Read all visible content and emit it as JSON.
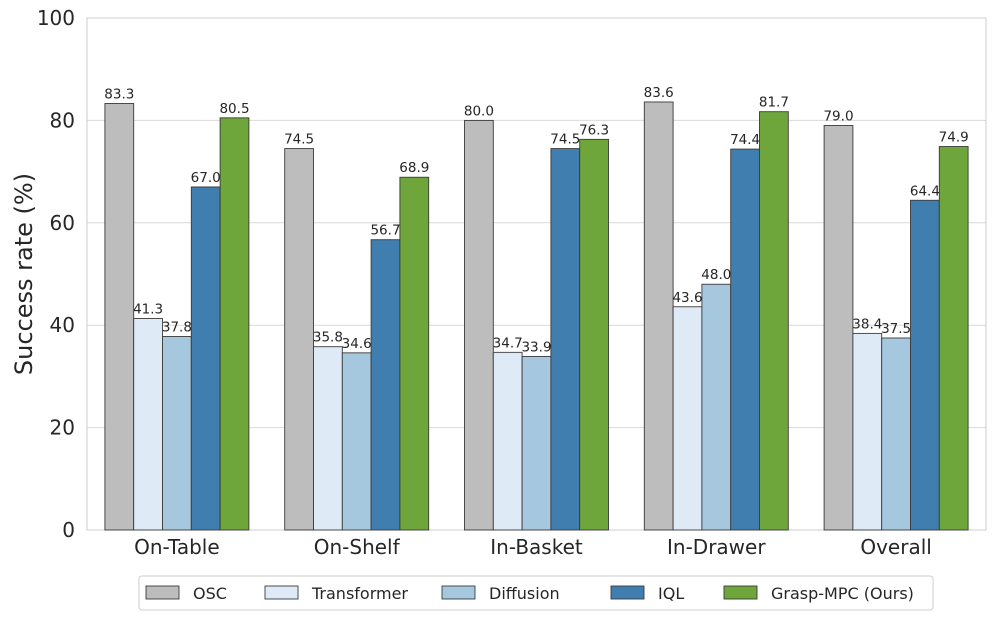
{
  "chart_data": {
    "type": "bar",
    "title": "",
    "xlabel": "",
    "ylabel": "Success rate (%)",
    "ylim": [
      0,
      100
    ],
    "yticks": [
      "0",
      "20",
      "40",
      "60",
      "80",
      "100"
    ],
    "grid": true,
    "legend_position": "bottom",
    "categories": [
      "On-Table",
      "On-Shelf",
      "In-Basket",
      "In-Drawer",
      "Overall"
    ],
    "series": [
      {
        "name": "OSC",
        "color": "#bdbdbd",
        "values": [
          83.3,
          74.5,
          80.0,
          83.6,
          79.0
        ]
      },
      {
        "name": "Transformer",
        "color": "#deebf7",
        "values": [
          41.3,
          35.8,
          34.7,
          43.6,
          38.4
        ]
      },
      {
        "name": "Diffusion",
        "color": "#a6c8de",
        "values": [
          37.8,
          34.6,
          33.9,
          48.0,
          37.5
        ]
      },
      {
        "name": "IQL",
        "color": "#3f7eae",
        "values": [
          67.0,
          56.7,
          74.5,
          74.4,
          64.4
        ]
      },
      {
        "name": "Grasp-MPC (Ours)",
        "color": "#6fa63b",
        "values": [
          80.5,
          68.9,
          76.3,
          81.7,
          74.9
        ]
      }
    ]
  }
}
